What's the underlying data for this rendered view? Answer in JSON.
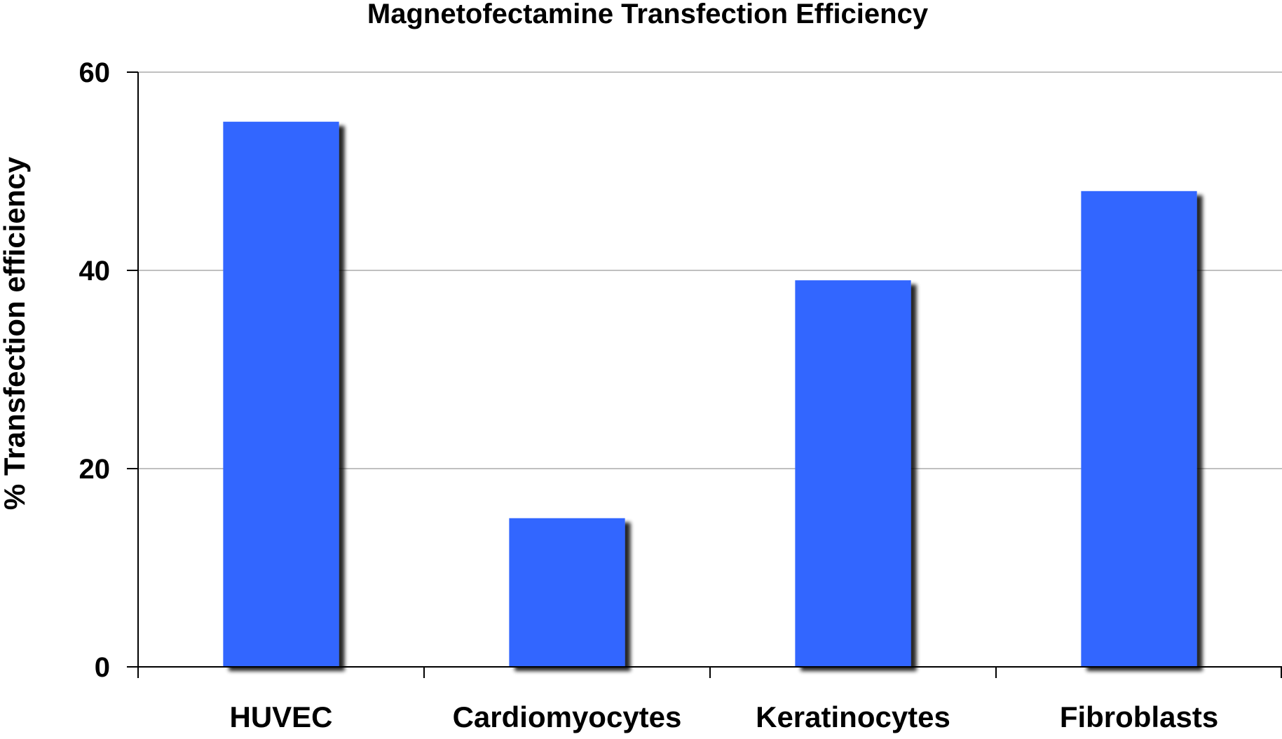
{
  "chart_data": {
    "type": "bar",
    "title": "Magnetofectamine Transfection Efficiency",
    "xlabel": "",
    "ylabel": "% Transfection efficiency",
    "categories": [
      "HUVEC",
      "Cardiomyocytes",
      "Keratinocytes",
      "Fibroblasts"
    ],
    "values": [
      55,
      15,
      39,
      48
    ],
    "ylim": [
      0,
      60
    ],
    "yticks": [
      "0",
      "20",
      "40",
      "60"
    ],
    "grid": true,
    "legend": "none",
    "colors": {
      "bar": "#3366ff",
      "shadow": "#000000",
      "gridline": "#c0c0c0",
      "axis": "#000000"
    }
  }
}
